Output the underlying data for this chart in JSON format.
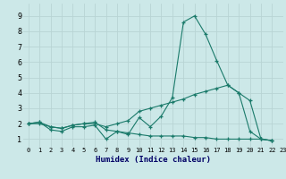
{
  "xlabel": "Humidex (Indice chaleur)",
  "ylabel": "",
  "background_color": "#cce8e8",
  "grid_color": "#b8d4d4",
  "line_color": "#1a7a6a",
  "xlim": [
    -0.5,
    23
  ],
  "ylim": [
    0.5,
    9.8
  ],
  "xticks": [
    0,
    1,
    2,
    3,
    4,
    5,
    6,
    7,
    8,
    9,
    10,
    11,
    12,
    13,
    14,
    15,
    16,
    17,
    18,
    19,
    20,
    21,
    22,
    23
  ],
  "yticks": [
    1,
    2,
    3,
    4,
    5,
    6,
    7,
    8,
    9
  ],
  "series": [
    [
      2.0,
      2.1,
      1.6,
      1.5,
      1.8,
      1.8,
      1.9,
      1.0,
      1.5,
      1.3,
      2.4,
      1.8,
      2.5,
      3.7,
      8.6,
      9.0,
      7.8,
      6.1,
      4.5,
      4.0,
      1.5,
      1.0,
      0.9
    ],
    [
      2.0,
      2.0,
      1.8,
      1.7,
      1.9,
      2.0,
      2.1,
      1.6,
      1.5,
      1.4,
      1.3,
      1.2,
      1.2,
      1.2,
      1.2,
      1.1,
      1.1,
      1.0,
      1.0,
      1.0,
      1.0,
      1.0,
      0.9
    ],
    [
      2.0,
      2.1,
      1.8,
      1.7,
      1.9,
      2.0,
      2.0,
      1.8,
      2.0,
      2.2,
      2.8,
      3.0,
      3.2,
      3.4,
      3.6,
      3.9,
      4.1,
      4.3,
      4.5,
      4.0,
      3.5,
      1.0,
      0.9
    ]
  ],
  "x_values": [
    0,
    1,
    2,
    3,
    4,
    5,
    6,
    7,
    8,
    9,
    10,
    11,
    12,
    13,
    14,
    15,
    16,
    17,
    18,
    19,
    20,
    21,
    22
  ]
}
